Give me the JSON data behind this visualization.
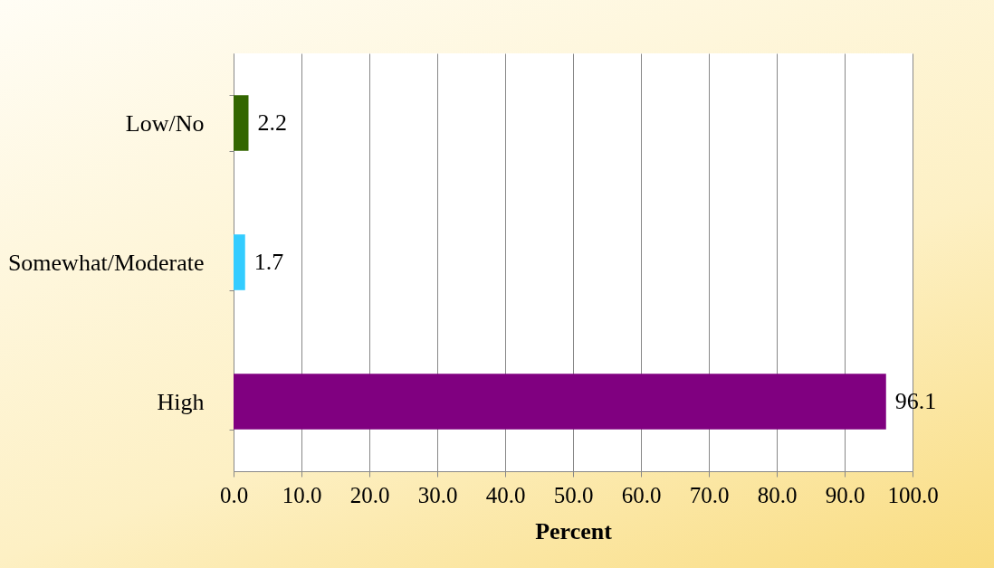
{
  "chart_data": {
    "type": "bar",
    "orientation": "horizontal",
    "categories": [
      "Low/No",
      "Somewhat/Moderate",
      "High"
    ],
    "values": [
      2.2,
      1.7,
      96.1
    ],
    "colors": [
      "#336600",
      "#33ccff",
      "#800080"
    ],
    "xlabel": "Percent",
    "xlim": [
      0,
      100
    ],
    "xticks": [
      {
        "value": 0,
        "label": "0.0"
      },
      {
        "value": 10,
        "label": "10.0"
      },
      {
        "value": 20,
        "label": "20.0"
      },
      {
        "value": 30,
        "label": "30.0"
      },
      {
        "value": 40,
        "label": "40.0"
      },
      {
        "value": 50,
        "label": "50.0"
      },
      {
        "value": 60,
        "label": "60.0"
      },
      {
        "value": 70,
        "label": "70.0"
      },
      {
        "value": 80,
        "label": "80.0"
      },
      {
        "value": 90,
        "label": "90.0"
      },
      {
        "value": 100,
        "label": "100.0"
      }
    ],
    "grid": "x",
    "data_labels": true
  }
}
